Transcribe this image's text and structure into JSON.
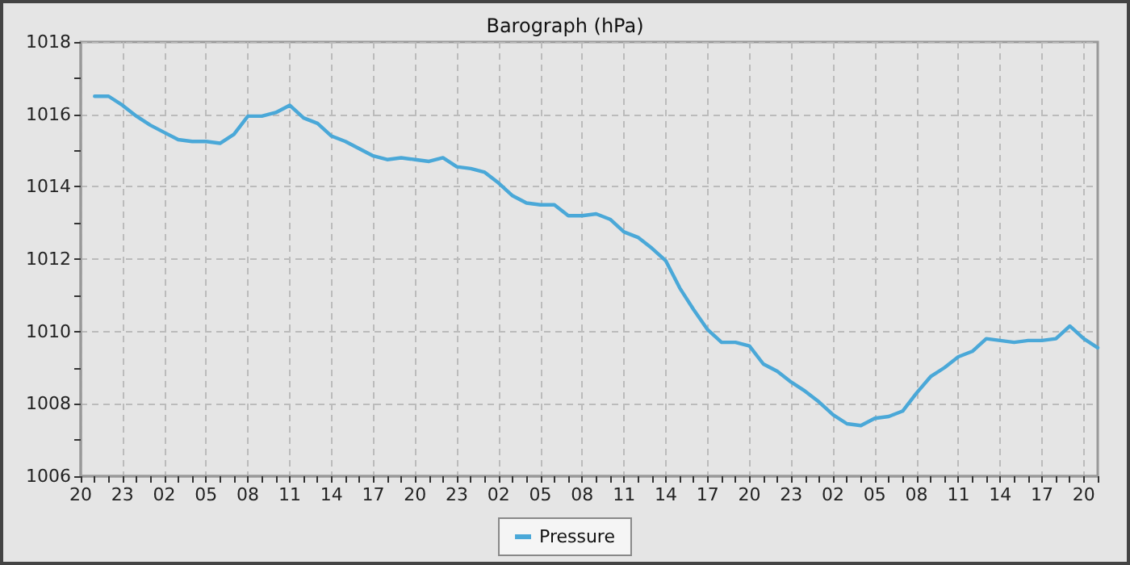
{
  "chart_data": {
    "type": "line",
    "title": "Barograph (hPa)",
    "categories": [
      "20",
      null,
      null,
      "23",
      null,
      null,
      "02",
      null,
      null,
      "05",
      null,
      null,
      "08",
      null,
      null,
      "11",
      null,
      null,
      "14",
      null,
      null,
      "17",
      null,
      null,
      "20",
      null,
      null,
      "23",
      null,
      null,
      "02",
      null,
      null,
      "05",
      null,
      null,
      "08",
      null,
      null,
      "11",
      null,
      null,
      "14",
      null,
      null,
      "17",
      null,
      null,
      "20",
      null,
      null,
      "23",
      null,
      null,
      "02",
      null,
      null,
      "05",
      null,
      null,
      "08",
      null,
      null,
      "11",
      null,
      null,
      "14",
      null,
      null,
      "17",
      null,
      null,
      "20",
      null
    ],
    "series": [
      {
        "name": "Pressure",
        "color": "#4aa8d8",
        "values": [
          null,
          1016.5,
          1016.5,
          1016.25,
          1015.95,
          1015.7,
          1015.5,
          1015.3,
          1015.25,
          1015.25,
          1015.2,
          1015.45,
          1015.95,
          1015.95,
          1016.05,
          1016.25,
          1015.9,
          1015.75,
          1015.4,
          1015.25,
          1015.05,
          1014.85,
          1014.75,
          1014.8,
          1014.75,
          1014.7,
          1014.8,
          1014.55,
          1014.5,
          1014.4,
          1014.1,
          1013.75,
          1013.55,
          1013.5,
          1013.5,
          1013.2,
          1013.2,
          1013.25,
          1013.1,
          1012.75,
          1012.6,
          1012.3,
          1011.95,
          1011.2,
          1010.6,
          1010.05,
          1009.7,
          1009.7,
          1009.6,
          1009.1,
          1008.9,
          1008.6,
          1008.35,
          1008.05,
          1007.7,
          1007.45,
          1007.4,
          1007.6,
          1007.65,
          1007.8,
          1008.3,
          1008.75,
          1009.0,
          1009.3,
          1009.45,
          1009.8,
          1009.75,
          1009.7,
          1009.75,
          1009.75,
          1009.8,
          1010.15,
          1009.8,
          1009.55
        ]
      }
    ],
    "ylim": [
      1006,
      1018
    ],
    "yticks": [
      1006,
      {
        "value": 1007,
        "label": null
      },
      1008,
      {
        "value": 1009,
        "label": null
      },
      1010,
      {
        "value": 1011,
        "label": null
      },
      1012,
      {
        "value": 1013,
        "label": null
      },
      1014,
      {
        "value": 1015,
        "label": null
      },
      1016,
      {
        "value": 1017,
        "label": null
      },
      1018
    ],
    "grid": true,
    "legend": "bottom",
    "marker": "none",
    "line_style": "solid"
  }
}
